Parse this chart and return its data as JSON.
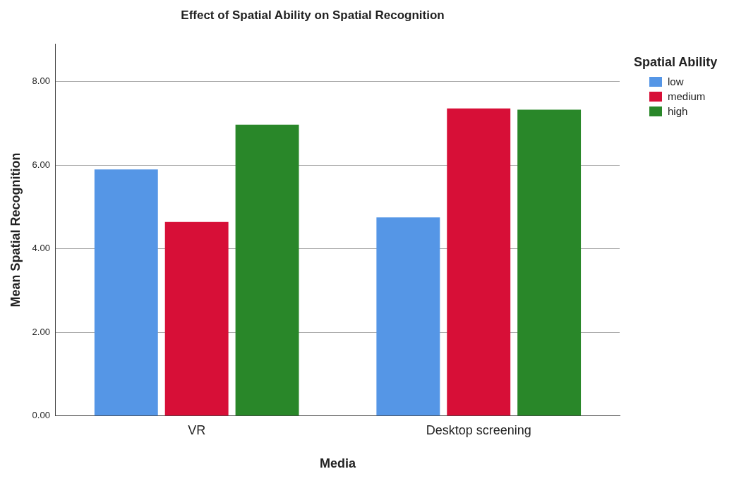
{
  "chart_data": {
    "type": "bar",
    "title": "Effect of Spatial Ability on Spatial Recognition",
    "xlabel": "Media",
    "ylabel": "Mean Spatial Recognition",
    "legend_title": "Spatial Ability",
    "categories": [
      "VR",
      "Desktop screening"
    ],
    "series": [
      {
        "name": "low",
        "color": "#5596e6",
        "values": [
          5.9,
          4.75
        ]
      },
      {
        "name": "medium",
        "color": "#d70f37",
        "values": [
          4.64,
          7.36
        ]
      },
      {
        "name": "high",
        "color": "#298729",
        "values": [
          6.97,
          7.33
        ]
      }
    ],
    "ylim": [
      0,
      8.9
    ],
    "yticks": [
      {
        "value": 0,
        "label": "0.00"
      },
      {
        "value": 2,
        "label": "2.00"
      },
      {
        "value": 4,
        "label": "4.00"
      },
      {
        "value": 6,
        "label": "6.00"
      },
      {
        "value": 8,
        "label": "8.00"
      }
    ],
    "grid": "y",
    "legend": "top right"
  }
}
